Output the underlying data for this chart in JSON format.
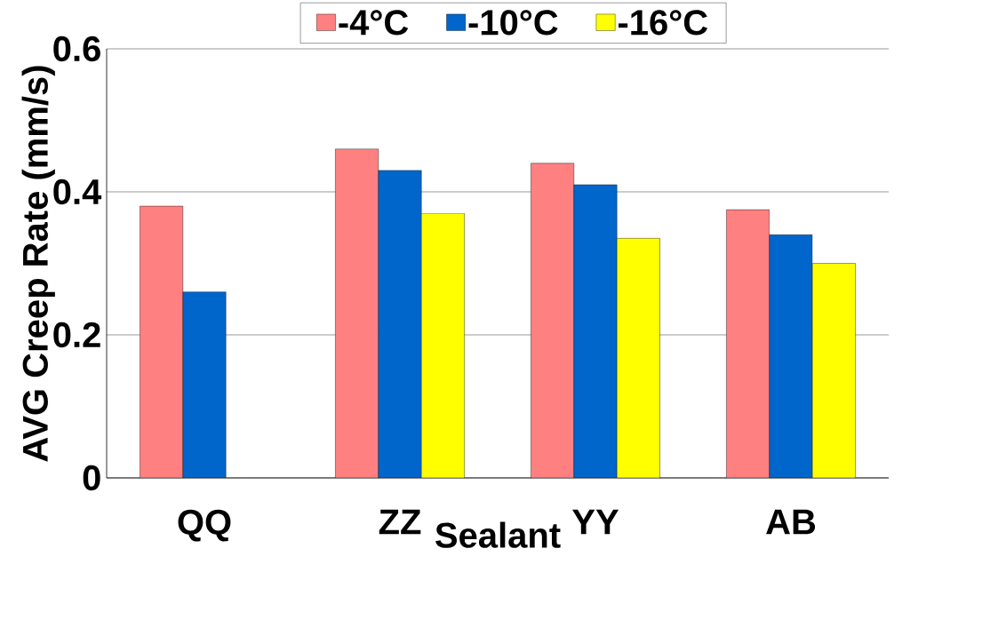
{
  "chart_data": {
    "type": "bar",
    "xlabel": "Sealant",
    "ylabel": "AVG Creep Rate (mm/s)",
    "categories": [
      "QQ",
      "ZZ",
      "YY",
      "AB"
    ],
    "series": [
      {
        "name": "-4°C",
        "color": "#ff8080",
        "values": [
          0.38,
          0.46,
          0.44,
          0.375
        ]
      },
      {
        "name": "-10°C",
        "color": "#0066cc",
        "values": [
          0.26,
          0.43,
          0.41,
          0.34
        ]
      },
      {
        "name": "-16°C",
        "color": "#ffff00",
        "values": [
          null,
          0.37,
          0.335,
          0.3
        ]
      }
    ],
    "ylim": [
      0,
      0.6
    ],
    "yticks": [
      0,
      {
        "value": 0.2,
        "label": "0.2"
      },
      {
        "value": 0.4,
        "label": "0.4"
      },
      {
        "value": 0.6,
        "label": "0.6"
      }
    ],
    "grid": "y",
    "legend": "top"
  }
}
